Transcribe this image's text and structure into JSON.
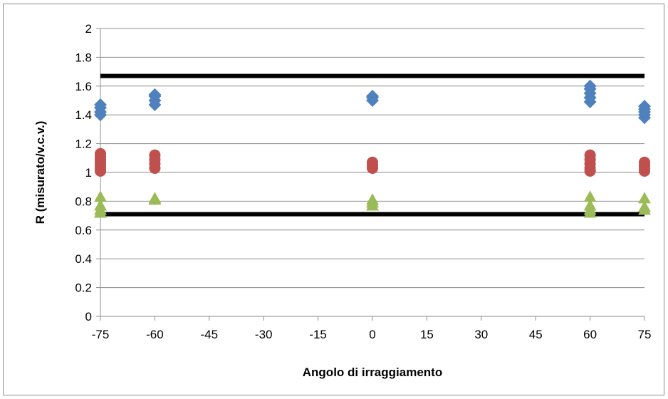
{
  "chart_data": {
    "type": "scatter",
    "title": "",
    "xlabel": "Angolo di irraggiamento",
    "ylabel": "R (misurato/v.c.v.)",
    "xlim": [
      -75,
      75
    ],
    "ylim": [
      0,
      2
    ],
    "x_ticks": [
      -75,
      -60,
      -45,
      -30,
      -15,
      0,
      15,
      30,
      45,
      60,
      75
    ],
    "y_ticks": [
      0,
      0.2,
      0.4,
      0.6,
      0.8,
      1,
      1.2,
      1.4,
      1.6,
      1.8,
      2
    ],
    "x_tick_labels": [
      "-75",
      "-60",
      "-45",
      "-30",
      "-15",
      "0",
      "15",
      "30",
      "45",
      "60",
      "75"
    ],
    "y_tick_labels": [
      "0",
      "0.2",
      "0.4",
      "0.6",
      "0.8",
      "1",
      "1.2",
      "1.4",
      "1.6",
      "1.8",
      "2"
    ],
    "grid": "horizontal",
    "legend": "none",
    "series": [
      {
        "marker": "diamond",
        "color": "#4f81bd",
        "points": [
          [
            -75,
            1.4
          ],
          [
            -75,
            1.42
          ],
          [
            -75,
            1.45
          ],
          [
            -75,
            1.47
          ],
          [
            -60,
            1.47
          ],
          [
            -60,
            1.5
          ],
          [
            -60,
            1.53
          ],
          [
            -60,
            1.54
          ],
          [
            0,
            1.5
          ],
          [
            0,
            1.52
          ],
          [
            0,
            1.53
          ],
          [
            60,
            1.49
          ],
          [
            60,
            1.52
          ],
          [
            60,
            1.55
          ],
          [
            60,
            1.58
          ],
          [
            60,
            1.6
          ],
          [
            75,
            1.38
          ],
          [
            75,
            1.4
          ],
          [
            75,
            1.42
          ],
          [
            75,
            1.44
          ],
          [
            75,
            1.46
          ]
        ]
      },
      {
        "marker": "circle",
        "color": "#c0504d",
        "points": [
          [
            -75,
            1.01
          ],
          [
            -75,
            1.03
          ],
          [
            -75,
            1.05
          ],
          [
            -75,
            1.07
          ],
          [
            -75,
            1.09
          ],
          [
            -75,
            1.11
          ],
          [
            -75,
            1.13
          ],
          [
            -60,
            1.03
          ],
          [
            -60,
            1.06
          ],
          [
            -60,
            1.09
          ],
          [
            -60,
            1.12
          ],
          [
            0,
            1.03
          ],
          [
            0,
            1.05
          ],
          [
            0,
            1.07
          ],
          [
            60,
            1.01
          ],
          [
            60,
            1.03
          ],
          [
            60,
            1.06
          ],
          [
            60,
            1.09
          ],
          [
            60,
            1.12
          ],
          [
            75,
            1.01
          ],
          [
            75,
            1.03
          ],
          [
            75,
            1.05
          ],
          [
            75,
            1.07
          ]
        ]
      },
      {
        "marker": "triangle",
        "color": "#9bbb59",
        "points": [
          [
            -75,
            0.72
          ],
          [
            -75,
            0.74
          ],
          [
            -75,
            0.77
          ],
          [
            -75,
            0.83
          ],
          [
            -60,
            0.81
          ],
          [
            -60,
            0.82
          ],
          [
            0,
            0.77
          ],
          [
            0,
            0.79
          ],
          [
            0,
            0.81
          ],
          [
            60,
            0.72
          ],
          [
            60,
            0.74
          ],
          [
            60,
            0.77
          ],
          [
            60,
            0.83
          ],
          [
            75,
            0.74
          ],
          [
            75,
            0.76
          ],
          [
            75,
            0.82
          ]
        ]
      }
    ],
    "reference_lines": [
      {
        "y": 1.67,
        "color": "#000000"
      },
      {
        "y": 0.71,
        "color": "#000000"
      }
    ]
  }
}
